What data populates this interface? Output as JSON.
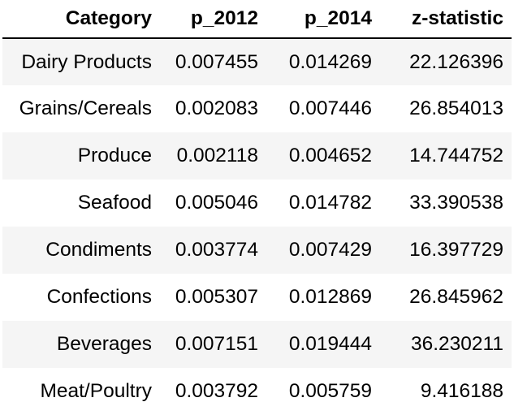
{
  "table": {
    "columns": [
      "Category",
      "p_2012",
      "p_2014",
      "z-statistic"
    ],
    "rows": [
      [
        "Dairy Products",
        "0.007455",
        "0.014269",
        "22.126396"
      ],
      [
        "Grains/Cereals",
        "0.002083",
        "0.007446",
        "26.854013"
      ],
      [
        "Produce",
        "0.002118",
        "0.004652",
        "14.744752"
      ],
      [
        "Seafood",
        "0.005046",
        "0.014782",
        "33.390538"
      ],
      [
        "Condiments",
        "0.003774",
        "0.007429",
        "16.397729"
      ],
      [
        "Confections",
        "0.005307",
        "0.012869",
        "26.845962"
      ],
      [
        "Beverages",
        "0.007151",
        "0.019444",
        "36.230211"
      ],
      [
        "Meat/Poultry",
        "0.003792",
        "0.005759",
        "9.416188"
      ]
    ]
  },
  "colors": {
    "stripe": "#f5f5f5",
    "background": "#ffffff",
    "text": "#000000"
  }
}
